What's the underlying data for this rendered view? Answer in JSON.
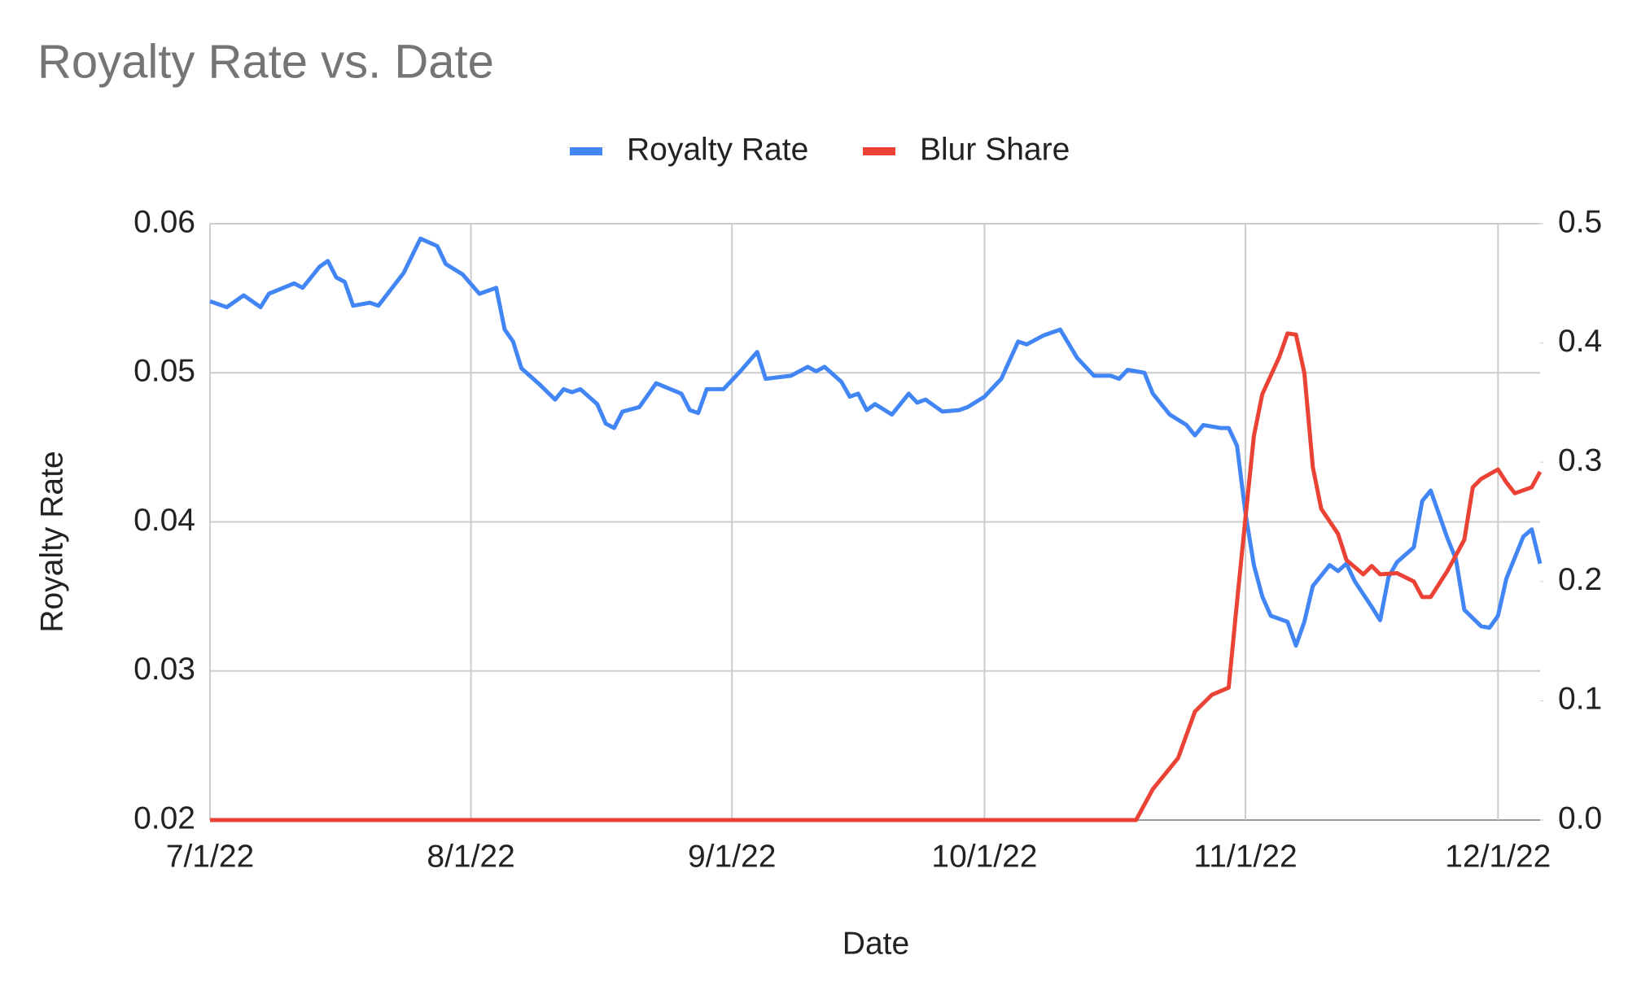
{
  "chart_data": {
    "type": "line",
    "title": "Royalty Rate vs. Date",
    "x_label": "Date",
    "y_label": "Royalty Rate",
    "xlim": [
      "7/1/22",
      "12/6/22"
    ],
    "xticks": [
      "7/1/22",
      "8/1/22",
      "9/1/22",
      "10/1/22",
      "11/1/22",
      "12/1/22"
    ],
    "ylim": [
      0.02,
      0.06
    ],
    "yticks": [
      0.02,
      0.03,
      0.04,
      0.05,
      0.06
    ],
    "y2lim": [
      0,
      0.5
    ],
    "y2ticks": [
      {
        "value": 0,
        "label": "0.0"
      },
      0.1,
      0.2,
      0.3,
      0.4,
      0.5
    ],
    "grid": true,
    "legend": "top",
    "series": [
      {
        "name": "Royalty Rate",
        "color": "#4285f4",
        "x": [
          "7/1/22",
          "7/3/22",
          "7/5/22",
          "7/7/22",
          "7/8/22",
          "7/11/22",
          "7/12/22",
          "7/14/22",
          "7/15/22",
          "7/16/22",
          "7/17/22",
          "7/18/22",
          "7/20/22",
          "7/21/22",
          "7/24/22",
          "7/26/22",
          "7/28/22",
          "7/29/22",
          "7/31/22",
          "8/2/22",
          "8/4/22",
          "8/5/22",
          "8/6/22",
          "8/7/22",
          "8/9/22",
          "8/11/22",
          "8/12/22",
          "8/13/22",
          "8/14/22",
          "8/16/22",
          "8/17/22",
          "8/18/22",
          "8/19/22",
          "8/21/22",
          "8/23/22",
          "8/26/22",
          "8/27/22",
          "8/28/22",
          "8/29/22",
          "8/31/22",
          "9/2/22",
          "9/4/22",
          "9/5/22",
          "9/8/22",
          "9/10/22",
          "9/11/22",
          "9/12/22",
          "9/14/22",
          "9/15/22",
          "9/16/22",
          "9/17/22",
          "9/18/22",
          "9/20/22",
          "9/22/22",
          "9/23/22",
          "9/24/22",
          "9/26/22",
          "9/28/22",
          "9/29/22",
          "10/1/22",
          "10/3/22",
          "10/5/22",
          "10/6/22",
          "10/8/22",
          "10/10/22",
          "10/12/22",
          "10/14/22",
          "10/16/22",
          "10/17/22",
          "10/18/22",
          "10/20/22",
          "10/21/22",
          "10/23/22",
          "10/25/22",
          "10/26/22",
          "10/27/22",
          "10/29/22",
          "10/30/22",
          "10/31/22",
          "11/1/22",
          "11/2/22",
          "11/3/22",
          "11/4/22",
          "11/6/22",
          "11/7/22",
          "11/8/22",
          "11/9/22",
          "11/11/22",
          "11/12/22",
          "11/13/22",
          "11/14/22",
          "11/16/22",
          "11/17/22",
          "11/18/22",
          "11/19/22",
          "11/21/22",
          "11/22/22",
          "11/23/22",
          "11/25/22",
          "11/26/22",
          "11/27/22",
          "11/29/22",
          "11/30/22",
          "12/1/22",
          "12/2/22",
          "12/4/22",
          "12/5/22",
          "12/6/22"
        ],
        "values": [
          0.0548,
          0.0544,
          0.0552,
          0.0544,
          0.0553,
          0.056,
          0.0557,
          0.0571,
          0.0575,
          0.0564,
          0.0561,
          0.0545,
          0.0547,
          0.0545,
          0.0567,
          0.059,
          0.0585,
          0.0573,
          0.0566,
          0.0553,
          0.0557,
          0.0529,
          0.0521,
          0.0503,
          0.0493,
          0.0482,
          0.0489,
          0.0487,
          0.0489,
          0.0479,
          0.0466,
          0.0463,
          0.0474,
          0.0477,
          0.0493,
          0.0486,
          0.0475,
          0.0473,
          0.0489,
          0.0489,
          0.0501,
          0.0514,
          0.0496,
          0.0498,
          0.0504,
          0.0501,
          0.0504,
          0.0494,
          0.0484,
          0.0486,
          0.0475,
          0.0479,
          0.0472,
          0.0486,
          0.048,
          0.0482,
          0.0474,
          0.0475,
          0.0477,
          0.0484,
          0.0496,
          0.0521,
          0.0519,
          0.0525,
          0.0529,
          0.051,
          0.0498,
          0.0498,
          0.0496,
          0.0502,
          0.05,
          0.0486,
          0.0472,
          0.0465,
          0.0458,
          0.0465,
          0.0463,
          0.0463,
          0.0451,
          0.0406,
          0.0371,
          0.035,
          0.0337,
          0.0333,
          0.0317,
          0.0333,
          0.0357,
          0.0371,
          0.0367,
          0.0372,
          0.036,
          0.0343,
          0.0334,
          0.0363,
          0.0373,
          0.0383,
          0.0414,
          0.0421,
          0.0389,
          0.0375,
          0.0341,
          0.033,
          0.0329,
          0.0337,
          0.0362,
          0.039,
          0.0395,
          0.0372
        ]
      },
      {
        "name": "Blur Share",
        "color": "#ea4335",
        "axis": "y2",
        "x": [
          "7/1/22",
          "10/19/22",
          "10/21/22",
          "10/24/22",
          "10/26/22",
          "10/28/22",
          "10/30/22",
          "10/31/22",
          "11/1/22",
          "11/2/22",
          "11/3/22",
          "11/5/22",
          "11/6/22",
          "11/7/22",
          "11/8/22",
          "11/9/22",
          "11/10/22",
          "11/12/22",
          "11/13/22",
          "11/15/22",
          "11/16/22",
          "11/17/22",
          "11/19/22",
          "11/21/22",
          "11/22/22",
          "11/23/22",
          "11/25/22",
          "11/27/22",
          "11/28/22",
          "11/29/22",
          "12/1/22",
          "12/2/22",
          "12/3/22",
          "12/5/22",
          "12/6/22"
        ],
        "values": [
          0,
          0,
          0.026,
          0.052,
          0.091,
          0.105,
          0.111,
          0.183,
          0.253,
          0.322,
          0.357,
          0.388,
          0.408,
          0.407,
          0.375,
          0.296,
          0.261,
          0.24,
          0.218,
          0.206,
          0.213,
          0.206,
          0.207,
          0.2,
          0.187,
          0.187,
          0.209,
          0.235,
          0.279,
          0.286,
          0.294,
          0.283,
          0.274,
          0.279,
          0.292
        ]
      }
    ]
  }
}
